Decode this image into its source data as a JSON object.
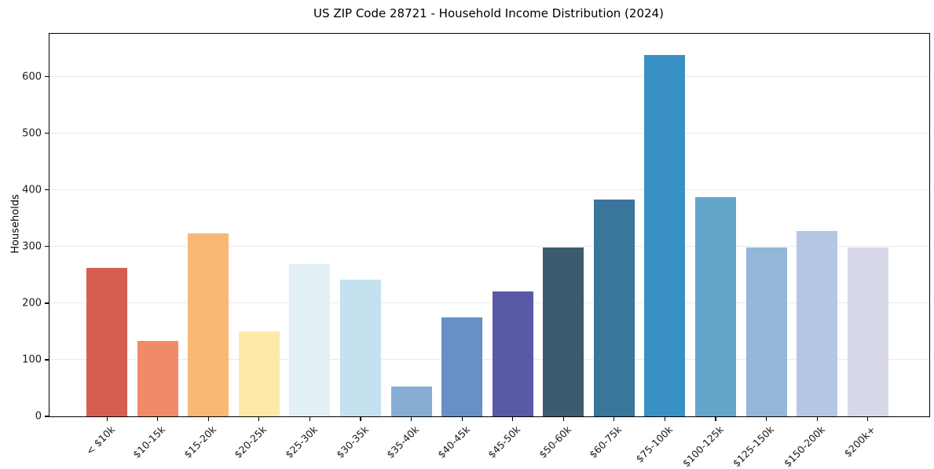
{
  "figure": {
    "title": "US ZIP Code 28721 - Household Income Distribution (2024)",
    "y_axis_label": "Households"
  },
  "chart_data": {
    "type": "bar",
    "title": "US ZIP Code 28721 - Household Income Distribution (2024)",
    "xlabel": "",
    "ylabel": "Households",
    "categories": [
      "< $10k",
      "$10-15k",
      "$15-20k",
      "$20-25k",
      "$25-30k",
      "$30-35k",
      "$35-40k",
      "$40-45k",
      "$45-50k",
      "$50-60k",
      "$60-75k",
      "$75-100k",
      "$100-125k",
      "$125-150k",
      "$150-200k",
      "$200k+"
    ],
    "values": [
      262,
      133,
      323,
      150,
      269,
      242,
      53,
      175,
      221,
      299,
      383,
      638,
      387,
      298,
      328,
      298
    ],
    "bar_colors": [
      "#d65d52",
      "#f08a68",
      "#fab877",
      "#fde9a9",
      "#e3f0f6",
      "#c3e1ee",
      "#85aed2",
      "#6690c6",
      "#5a59a8",
      "#3b5c6e",
      "#3a759c",
      "#3990c3",
      "#62a7cb",
      "#93b6d9",
      "#b5c7e2",
      "#d8d9e8"
    ],
    "yticks": [
      0,
      100,
      200,
      300,
      400,
      500,
      600
    ],
    "ylim": [
      0,
      676
    ],
    "grid": "horizontal",
    "gridline_color": "#e9e9ee",
    "legend_position": "none",
    "background_color": "#ffffff",
    "text_color": "#000000"
  }
}
